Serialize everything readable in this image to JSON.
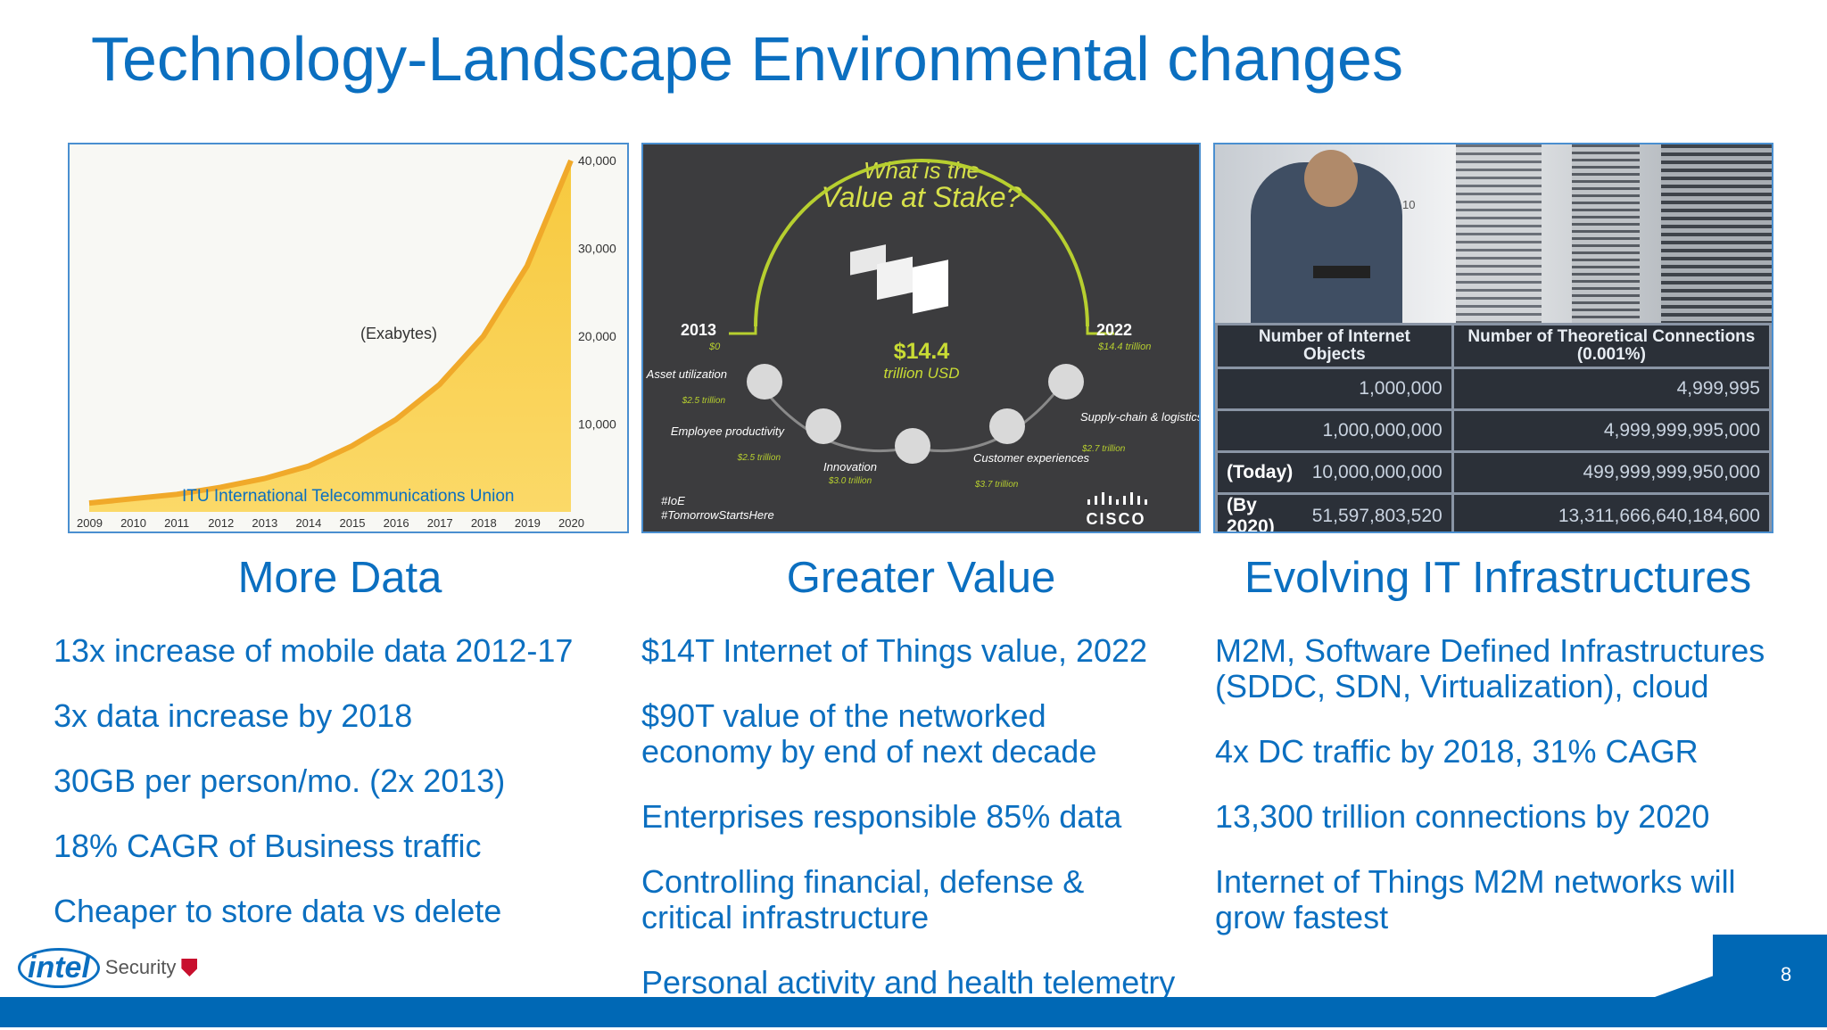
{
  "slide": {
    "title": "Technology-Landscape Environmental changes",
    "page_number": "8",
    "logo": {
      "brand": "intel",
      "product": "Security"
    }
  },
  "panel1": {
    "unit_label": "(Exabytes)",
    "source": "ITU International Telecommunications Union",
    "y_ticks": [
      "40,000",
      "30,000",
      "20,000",
      "10,000"
    ],
    "x_ticks": [
      "2009",
      "2010",
      "2011",
      "2012",
      "2013",
      "2014",
      "2015",
      "2016",
      "2017",
      "2018",
      "2019",
      "2020"
    ]
  },
  "chart_data": {
    "type": "area",
    "x": [
      2009,
      2010,
      2011,
      2012,
      2013,
      2014,
      2015,
      2016,
      2017,
      2018,
      2019,
      2020
    ],
    "values": [
      1000,
      1500,
      2000,
      2800,
      3800,
      5200,
      7500,
      10500,
      14500,
      20000,
      28000,
      40000
    ],
    "ylabel": "(Exabytes)",
    "ylim": [
      0,
      40000
    ],
    "color": "#f6c53a"
  },
  "panel2": {
    "heading_line1": "What is the",
    "heading_line2": "Value at Stake?",
    "left_year": "2013",
    "left_value": "$0",
    "right_year": "2022",
    "right_value": "$14.4 trillion",
    "center_value": "$14.4",
    "center_unit": "trillion USD",
    "items": [
      {
        "label": "Asset utilization",
        "value": "$2.5 trillion"
      },
      {
        "label": "Employee productivity",
        "value": "$2.5 trillion"
      },
      {
        "label": "Innovation",
        "value": "$3.0 trillion"
      },
      {
        "label": "Customer experiences",
        "value": "$3.7 trillion"
      },
      {
        "label": "Supply-chain & logistics efficiencies",
        "value": "$2.7 trillion"
      }
    ],
    "hashtags": [
      "#IoE",
      "#TomorrowStartsHere"
    ],
    "brand": "CISCO"
  },
  "panel3": {
    "photo_label": "10",
    "table": {
      "headers": [
        "Number of Internet Objects",
        "Number of Theoretical Connections (0.001%)"
      ],
      "rows": [
        {
          "label": "",
          "objects": "1,000,000",
          "connections": "4,999,995"
        },
        {
          "label": "",
          "objects": "1,000,000,000",
          "connections": "4,999,999,995,000"
        },
        {
          "label": "(Today)",
          "objects": "10,000,000,000",
          "connections": "499,999,999,950,000"
        },
        {
          "label": "(By 2020)",
          "objects": "51,597,803,520",
          "connections": "13,311,666,640,184,600"
        }
      ]
    }
  },
  "columns": [
    {
      "heading": "More Data",
      "items": [
        "13x increase of mobile data 2012-17",
        "3x data increase by 2018",
        "30GB per person/mo. (2x 2013)",
        "18% CAGR of Business traffic",
        "Cheaper to store data vs delete"
      ]
    },
    {
      "heading": "Greater Value",
      "items": [
        "$14T Internet of Things value, 2022",
        "$90T value of the networked economy by end of next decade",
        "Enterprises responsible 85% data",
        "Controlling financial, defense & critical infrastructure",
        "Personal activity and health telemetry"
      ]
    },
    {
      "heading": "Evolving IT Infrastructures",
      "items": [
        "M2M, Software Defined Infrastructures (SDDC, SDN, Virtualization), cloud",
        "4x DC traffic by 2018, 31% CAGR",
        "13,300 trillion connections by 2020",
        "Internet of Things M2M networks will grow fastest"
      ]
    }
  ]
}
